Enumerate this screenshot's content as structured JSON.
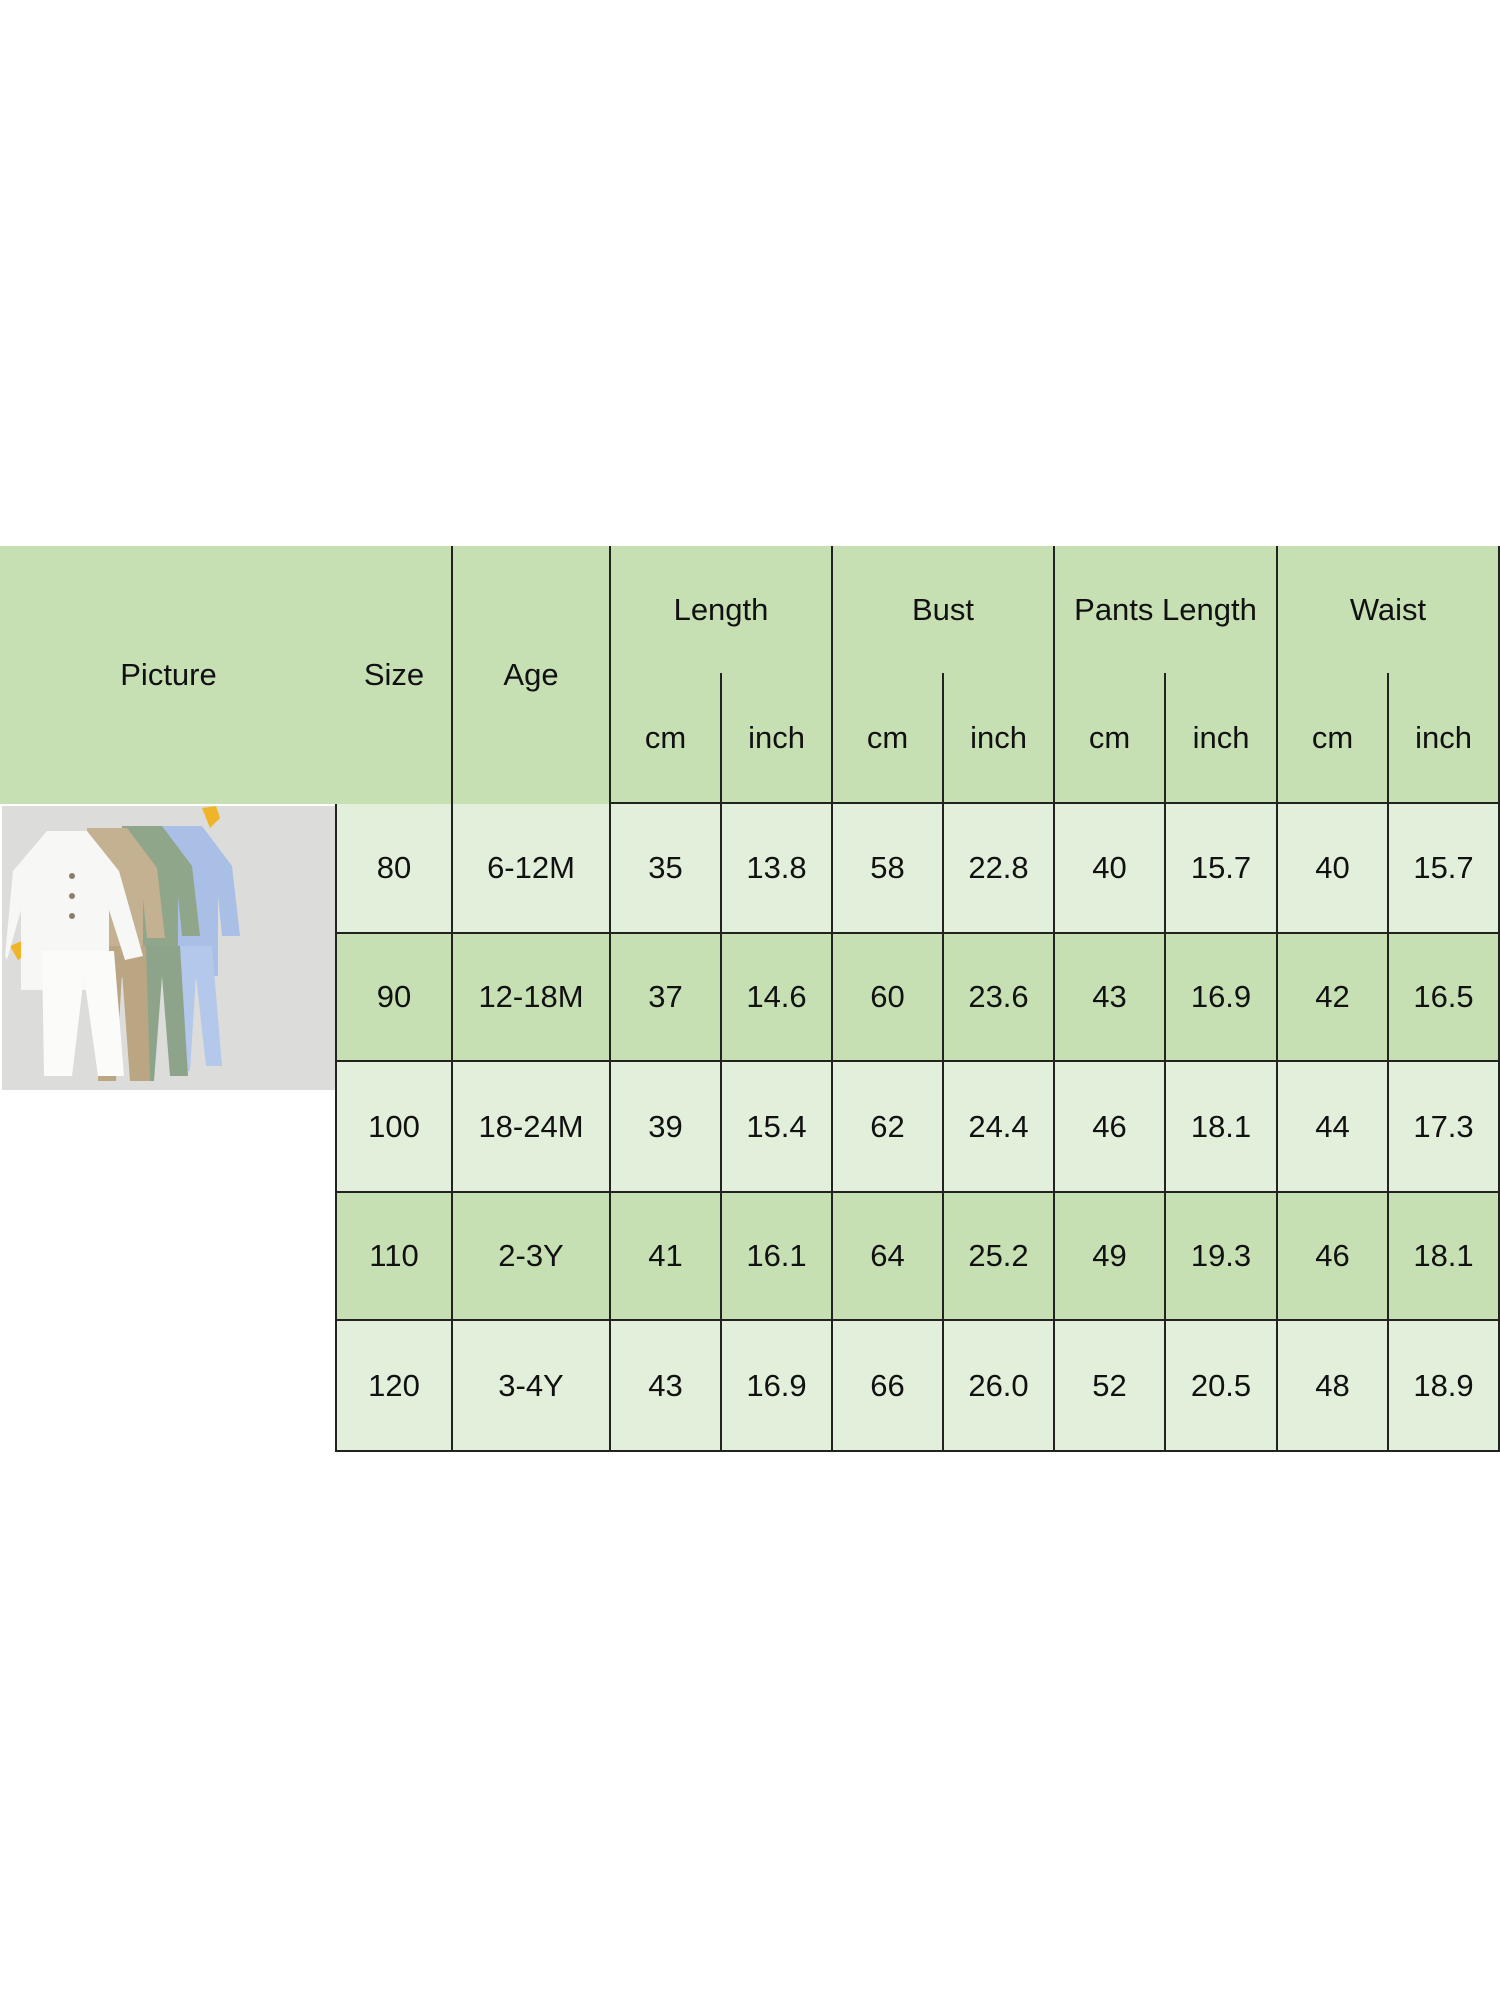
{
  "table": {
    "headers": {
      "picture": "Picture",
      "size": "Size",
      "age": "Age",
      "groups": [
        "Length",
        "Bust",
        "Pants Length",
        "Waist"
      ],
      "units": [
        "cm",
        "inch",
        "cm",
        "inch",
        "cm",
        "inch",
        "cm",
        "inch"
      ]
    },
    "rows": [
      {
        "size": "80",
        "age": "6-12M",
        "values": [
          "35",
          "13.8",
          "58",
          "22.8",
          "40",
          "15.7",
          "40",
          "15.7"
        ]
      },
      {
        "size": "90",
        "age": "12-18M",
        "values": [
          "37",
          "14.6",
          "60",
          "23.6",
          "43",
          "16.9",
          "42",
          "16.5"
        ]
      },
      {
        "size": "100",
        "age": "18-24M",
        "values": [
          "39",
          "15.4",
          "62",
          "24.4",
          "46",
          "18.1",
          "44",
          "17.3"
        ]
      },
      {
        "size": "110",
        "age": "2-3Y",
        "values": [
          "41",
          "16.1",
          "64",
          "25.2",
          "49",
          "19.3",
          "46",
          "18.1"
        ]
      },
      {
        "size": "120",
        "age": "3-4Y",
        "values": [
          "43",
          "16.9",
          "66",
          "26.0",
          "52",
          "20.5",
          "48",
          "18.9"
        ]
      }
    ],
    "product_image": "product-photo-four-outfits",
    "colors": {
      "header": "#c6e0b4",
      "row_dark": "#c6e0b4",
      "row_light": "#e2efda",
      "border": "#222222"
    }
  }
}
